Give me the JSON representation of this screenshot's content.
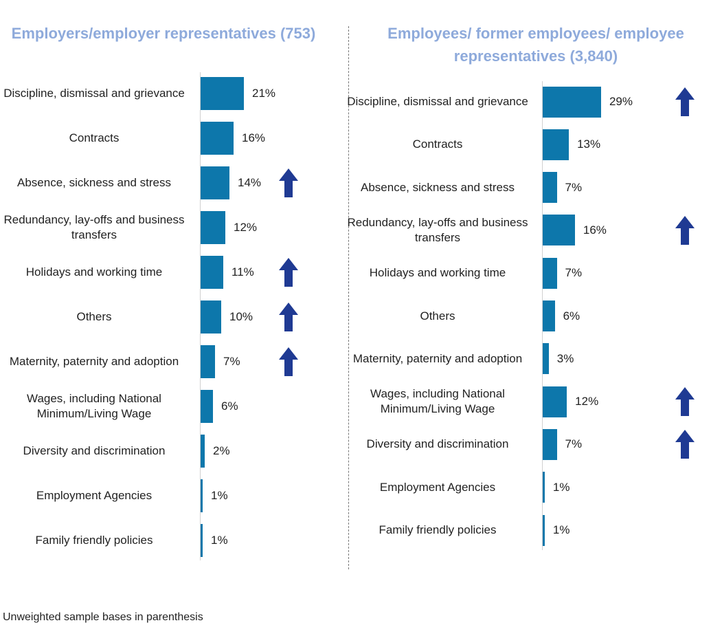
{
  "chart_data": [
    {
      "type": "bar",
      "title": "Employers/employer representatives (753)",
      "categories": [
        "Discipline, dismissal and grievance",
        "Contracts",
        "Absence, sickness and stress",
        "Redundancy, lay-offs and business transfers",
        "Holidays and working time",
        "Others",
        "Maternity, paternity and adoption",
        "Wages, including National Minimum/Living Wage",
        "Diversity and discrimination",
        "Employment Agencies",
        "Family friendly policies"
      ],
      "values": [
        21,
        16,
        14,
        12,
        11,
        10,
        7,
        6,
        2,
        1,
        1
      ],
      "value_labels": [
        "21%",
        "16%",
        "14%",
        "12%",
        "11%",
        "10%",
        "7%",
        "6%",
        "2%",
        "1%",
        "1%"
      ],
      "increase_arrows": [
        false,
        false,
        true,
        false,
        true,
        true,
        true,
        false,
        false,
        false,
        false
      ],
      "color": "#0d77ab"
    },
    {
      "type": "bar",
      "title": "Employees/ former employees/ employee representatives (3,840)",
      "categories": [
        "Discipline, dismissal and grievance",
        "Contracts",
        "Absence, sickness and stress",
        "Redundancy, lay-offs and business transfers",
        "Holidays and working time",
        "Others",
        "Maternity, paternity and adoption",
        "Wages, including National Minimum/Living Wage",
        "Diversity and discrimination",
        "Employment Agencies",
        "Family friendly policies"
      ],
      "values": [
        29,
        13,
        7,
        16,
        7,
        6,
        3,
        12,
        7,
        1,
        1
      ],
      "value_labels": [
        "29%",
        "13%",
        "7%",
        "16%",
        "7%",
        "6%",
        "3%",
        "12%",
        "7%",
        "1%",
        "1%"
      ],
      "increase_arrows": [
        true,
        false,
        false,
        true,
        false,
        false,
        false,
        true,
        true,
        false,
        false
      ],
      "color": "#0d77ab"
    }
  ],
  "footnote": "Unweighted sample bases in parenthesis"
}
